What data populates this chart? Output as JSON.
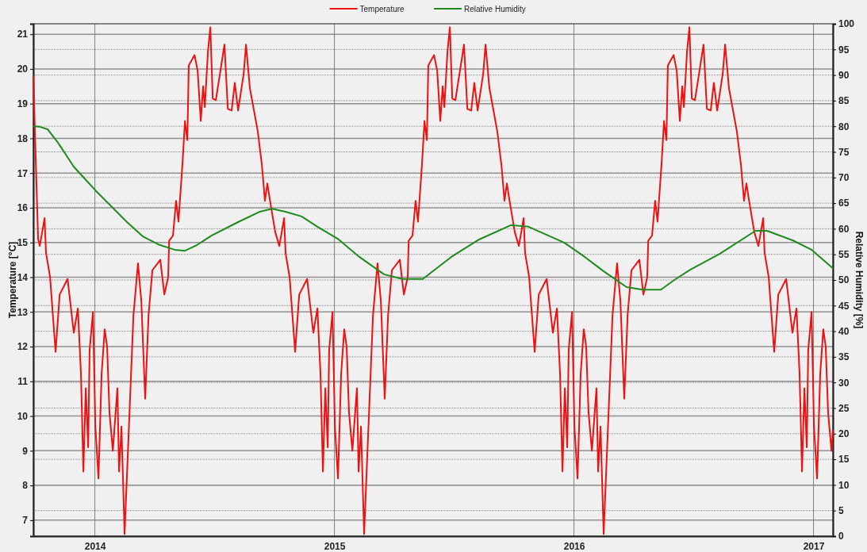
{
  "chart_data": {
    "type": "line",
    "xlabel": null,
    "ylabel": "Temperature [°C]",
    "y2label": "Relative Humidity [%]",
    "xlim": [
      2013.743,
      2017.081
    ],
    "xticks": [
      2014,
      2015,
      2016,
      2017
    ],
    "ylim": [
      6.54,
      21.3
    ],
    "yticks": [
      7,
      8,
      9,
      10,
      11,
      12,
      13,
      14,
      15,
      16,
      17,
      18,
      19,
      20,
      21
    ],
    "y2lim": [
      0,
      100
    ],
    "y2ticks": [
      0,
      5,
      10,
      15,
      20,
      25,
      30,
      35,
      40,
      45,
      50,
      55,
      60,
      65,
      70,
      75,
      80,
      85,
      90,
      95,
      100
    ],
    "grid": true,
    "legend": "top",
    "line_style": "solid",
    "marker": "none",
    "series": [
      {
        "name": "Temperature",
        "color": "#ee1111",
        "x": [
          2013.743,
          2013.75,
          2013.763,
          2013.77,
          2013.79,
          2013.796,
          2013.813,
          2013.836,
          2013.853,
          2013.886,
          2013.912,
          2013.929,
          2013.942,
          2013.952,
          2013.962,
          2013.972,
          2013.978,
          2013.992,
          2014.002,
          2014.015,
          2014.028,
          2014.041,
          2014.051,
          2014.061,
          2014.075,
          2014.094,
          2014.101,
          2014.111,
          2014.124,
          2014.141,
          2014.161,
          2014.18,
          2014.194,
          2014.21,
          2014.224,
          2014.24,
          2014.273,
          2014.29,
          2014.306,
          2014.31,
          2014.326,
          2014.339,
          2014.349,
          2014.366,
          2014.376,
          2014.386,
          2014.392,
          2014.416,
          2014.429,
          2014.442,
          2014.452,
          2014.459,
          2014.472,
          2014.482,
          2014.492,
          2014.505,
          2014.541,
          2014.555,
          2014.571,
          2014.584,
          2014.598,
          2014.621,
          2014.631,
          2014.647,
          2014.68,
          2014.697,
          2014.71,
          2014.72,
          2014.73,
          2014.753,
          2014.77,
          2014.79,
          2014.796,
          2014.813,
          2014.836,
          2014.853,
          2014.886,
          2014.912,
          2014.929,
          2014.942,
          2014.952,
          2014.962,
          2014.972,
          2014.978,
          2014.992,
          2015.002,
          2015.015,
          2015.028,
          2015.041,
          2015.051,
          2015.061,
          2015.075,
          2015.094,
          2015.101,
          2015.111,
          2015.124,
          2015.141,
          2015.161,
          2015.18,
          2015.194,
          2015.21,
          2015.224,
          2015.24,
          2015.273,
          2015.29,
          2015.306,
          2015.31,
          2015.326,
          2015.339,
          2015.349,
          2015.366,
          2015.376,
          2015.386,
          2015.392,
          2015.416,
          2015.429,
          2015.442,
          2015.452,
          2015.459,
          2015.472,
          2015.482,
          2015.492,
          2015.505,
          2015.541,
          2015.555,
          2015.571,
          2015.584,
          2015.598,
          2015.621,
          2015.631,
          2015.647,
          2015.68,
          2015.697,
          2015.71,
          2015.72,
          2015.73,
          2015.753,
          2015.77,
          2015.79,
          2015.796,
          2015.813,
          2015.836,
          2015.853,
          2015.886,
          2015.912,
          2015.929,
          2015.942,
          2015.952,
          2015.962,
          2015.972,
          2015.978,
          2015.992,
          2016.002,
          2016.015,
          2016.028,
          2016.041,
          2016.051,
          2016.061,
          2016.075,
          2016.094,
          2016.101,
          2016.111,
          2016.124,
          2016.141,
          2016.161,
          2016.18,
          2016.194,
          2016.21,
          2016.224,
          2016.24,
          2016.273,
          2016.29,
          2016.306,
          2016.31,
          2016.326,
          2016.339,
          2016.349,
          2016.366,
          2016.376,
          2016.386,
          2016.392,
          2016.416,
          2016.429,
          2016.442,
          2016.452,
          2016.459,
          2016.472,
          2016.482,
          2016.492,
          2016.505,
          2016.541,
          2016.555,
          2016.571,
          2016.584,
          2016.598,
          2016.621,
          2016.631,
          2016.647,
          2016.68,
          2016.697,
          2016.71,
          2016.72,
          2016.73,
          2016.753,
          2016.77,
          2016.79,
          2016.796,
          2016.813,
          2016.836,
          2016.853,
          2016.886,
          2016.912,
          2016.929,
          2016.942,
          2016.952,
          2016.962,
          2016.972,
          2016.978,
          2016.992,
          2017.002,
          2017.015,
          2017.028,
          2017.041,
          2017.051,
          2017.061,
          2017.075,
          2017.081
        ],
        "values": [
          19.8,
          18.1,
          15.1,
          14.9,
          15.7,
          14.7,
          14.0,
          11.85,
          13.5,
          13.95,
          12.4,
          13.1,
          11.2,
          8.4,
          10.8,
          9.1,
          11.9,
          13.0,
          9.7,
          8.2,
          11.2,
          12.5,
          12.0,
          10.1,
          9.0,
          10.8,
          8.4,
          9.7,
          6.6,
          9.5,
          12.9,
          14.4,
          13.3,
          10.5,
          12.9,
          14.2,
          14.5,
          13.5,
          14.0,
          15.05,
          15.2,
          16.2,
          15.6,
          17.3,
          18.5,
          17.95,
          20.1,
          20.4,
          19.95,
          18.5,
          19.5,
          18.9,
          20.5,
          21.2,
          19.15,
          19.1,
          20.7,
          18.85,
          18.8,
          19.6,
          18.8,
          19.85,
          20.7,
          19.45,
          18.2,
          17.25,
          16.2,
          16.7,
          16.25,
          15.3,
          14.9,
          15.7,
          14.7,
          14.0,
          11.85,
          13.5,
          13.95,
          12.4,
          13.1,
          11.2,
          8.4,
          10.8,
          9.1,
          11.9,
          13.0,
          9.7,
          8.2,
          11.2,
          12.5,
          12.0,
          10.1,
          9.0,
          10.8,
          8.4,
          9.7,
          6.6,
          9.5,
          12.9,
          14.4,
          13.3,
          10.5,
          12.9,
          14.2,
          14.5,
          13.5,
          14.0,
          15.05,
          15.2,
          16.2,
          15.6,
          17.3,
          18.5,
          17.95,
          20.1,
          20.4,
          19.95,
          18.5,
          19.5,
          18.9,
          20.5,
          21.2,
          19.15,
          19.1,
          20.7,
          18.85,
          18.8,
          19.6,
          18.8,
          19.85,
          20.7,
          19.45,
          18.2,
          17.25,
          16.2,
          16.7,
          16.25,
          15.3,
          14.9,
          15.7,
          14.7,
          14.0,
          11.85,
          13.5,
          13.95,
          12.4,
          13.1,
          11.2,
          8.4,
          10.8,
          9.1,
          11.9,
          13.0,
          9.7,
          8.2,
          11.2,
          12.5,
          12.0,
          10.1,
          9.0,
          10.8,
          8.4,
          9.7,
          6.6,
          9.5,
          12.9,
          14.4,
          13.3,
          10.5,
          12.9,
          14.2,
          14.5,
          13.5,
          14.0,
          15.05,
          15.2,
          16.2,
          15.6,
          17.3,
          18.5,
          17.95,
          20.1,
          20.4,
          19.95,
          18.5,
          19.5,
          18.9,
          20.5,
          21.2,
          19.15,
          19.1,
          20.7,
          18.85,
          18.8,
          19.6,
          18.8,
          19.85,
          20.7,
          19.45,
          18.2,
          17.25,
          16.2,
          16.7,
          16.25,
          15.3,
          14.9,
          15.7,
          14.7,
          14.0,
          11.85,
          13.5,
          13.95,
          12.4,
          13.1,
          11.2,
          8.4,
          10.8,
          9.1,
          11.9,
          13.0,
          9.7,
          8.2,
          11.2,
          12.5,
          12.0,
          10.1,
          9.0,
          9.6
        ]
      },
      {
        "name": "Relative Humidity",
        "color": "#1e8a1e",
        "axis": "y2",
        "x": [
          2013.743,
          2013.77,
          2013.803,
          2013.846,
          2013.912,
          2013.959,
          2014.002,
          2014.068,
          2014.134,
          2014.2,
          2014.267,
          2014.333,
          2014.376,
          2014.422,
          2014.488,
          2014.598,
          2014.687,
          2014.74,
          2014.796,
          2014.863,
          2014.929,
          2015.018,
          2015.104,
          2015.207,
          2015.283,
          2015.369,
          2015.488,
          2015.604,
          2015.737,
          2015.81,
          2015.959,
          2016.045,
          2016.121,
          2016.22,
          2016.287,
          2016.363,
          2016.419,
          2016.485,
          2016.608,
          2016.758,
          2016.806,
          2016.915,
          2016.992,
          2017.081
        ],
        "values": [
          80.0,
          79.9,
          79.4,
          76.8,
          72.1,
          69.7,
          67.5,
          64.4,
          61.3,
          58.5,
          56.9,
          55.9,
          55.7,
          56.7,
          58.7,
          61.3,
          63.3,
          63.9,
          63.3,
          62.4,
          60.4,
          57.9,
          54.5,
          51.1,
          50.2,
          50.2,
          54.5,
          57.9,
          60.7,
          60.4,
          57.3,
          54.5,
          51.8,
          48.6,
          48.1,
          48.1,
          50.0,
          52.0,
          55.1,
          59.6,
          59.6,
          57.7,
          55.9,
          52.3
        ]
      }
    ]
  }
}
